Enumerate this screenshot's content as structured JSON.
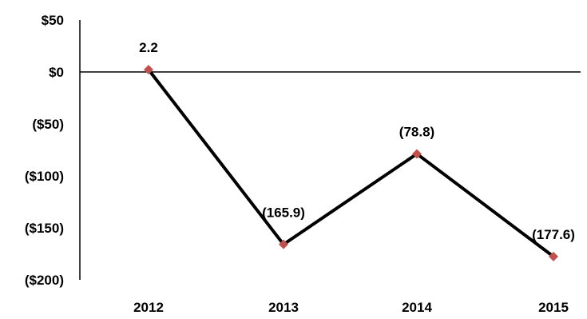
{
  "chart_data": {
    "type": "line",
    "title": "",
    "xlabel": "",
    "ylabel": "",
    "categories": [
      "2012",
      "2013",
      "2014",
      "2015"
    ],
    "series": [
      {
        "values": [
          2.2,
          -165.9,
          -78.8,
          -177.6
        ],
        "data_labels": [
          "2.2",
          "(165.9)",
          "(78.8)",
          "(177.6)"
        ]
      }
    ],
    "ylim": [
      -200,
      50
    ],
    "yticks": [
      {
        "value": 50,
        "label": "$50"
      },
      {
        "value": 0,
        "label": "$0"
      },
      {
        "value": -50,
        "label": "($50)"
      },
      {
        "value": -100,
        "label": "($100)"
      },
      {
        "value": -150,
        "label": "($150)"
      },
      {
        "value": -200,
        "label": "($200)"
      }
    ],
    "grid": false,
    "legend": "none",
    "colors": {
      "line": "#000000",
      "marker": "#c0504d",
      "axis": "#000000"
    }
  }
}
